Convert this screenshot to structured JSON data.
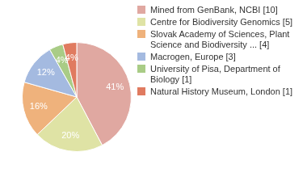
{
  "chart_data": {
    "type": "pie",
    "categories": [
      "Mined from GenBank, NCBI [10]",
      "Centre for Biodiversity Genomics [5]",
      "Slovak Academy of Sciences, Plant Science and Biodiversity ... [4]",
      "Macrogen, Europe [3]",
      "University of Pisa, Department of Biology [1]",
      "Natural History Museum, London [1]"
    ],
    "values": [
      41,
      20,
      16,
      12,
      4,
      4
    ],
    "value_labels": [
      "41%",
      "20%",
      "16%",
      "12%",
      "4%",
      "4%"
    ],
    "colors": [
      "#e0a8a1",
      "#dfe3a5",
      "#efb27c",
      "#a4bae0",
      "#a9cc86",
      "#e07b60"
    ],
    "data_labels": true,
    "legend": "right"
  }
}
